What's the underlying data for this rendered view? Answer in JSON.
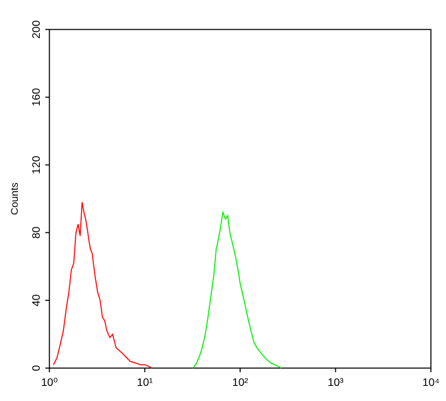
{
  "chart_data": {
    "type": "line",
    "ylabel": "Counts",
    "xscale": "log",
    "xlim": [
      1,
      10000
    ],
    "xticks": [
      {
        "value": 1,
        "label": "10⁰"
      },
      {
        "value": 10,
        "label": "10¹"
      },
      {
        "value": 100,
        "label": "10²"
      },
      {
        "value": 1000,
        "label": "10³"
      },
      {
        "value": 10000,
        "label": "10⁴"
      }
    ],
    "ylim": [
      0,
      200
    ],
    "yticks": [
      0,
      40,
      80,
      120,
      160,
      200
    ],
    "series": [
      {
        "color": "#ff0000",
        "x": [
          1.1,
          1.2,
          1.3,
          1.4,
          1.5,
          1.6,
          1.7,
          1.8,
          1.9,
          2.0,
          2.1,
          2.2,
          2.3,
          2.4,
          2.5,
          2.6,
          2.7,
          2.8,
          3.0,
          3.2,
          3.4,
          3.6,
          3.8,
          4.0,
          4.3,
          4.6,
          5,
          5.5,
          6,
          6.5,
          7,
          8,
          9,
          10,
          11,
          12
        ],
        "values": [
          2,
          6,
          14,
          22,
          35,
          45,
          58,
          62,
          80,
          85,
          78,
          98,
          92,
          88,
          82,
          75,
          70,
          68,
          55,
          45,
          40,
          30,
          28,
          22,
          18,
          20,
          12,
          10,
          8,
          6,
          4,
          3,
          2,
          2,
          1,
          0
        ]
      },
      {
        "color": "#00ee00",
        "x": [
          32,
          35,
          38,
          40,
          43,
          46,
          50,
          53,
          56,
          60,
          63,
          66,
          70,
          74,
          78,
          82,
          86,
          90,
          95,
          100,
          110,
          120,
          130,
          140,
          150,
          170,
          190,
          210,
          230,
          250,
          270
        ],
        "values": [
          0,
          3,
          8,
          12,
          20,
          30,
          45,
          55,
          70,
          78,
          85,
          92,
          88,
          90,
          80,
          75,
          70,
          65,
          58,
          50,
          40,
          30,
          22,
          15,
          12,
          8,
          5,
          3,
          2,
          1,
          0
        ]
      }
    ]
  }
}
